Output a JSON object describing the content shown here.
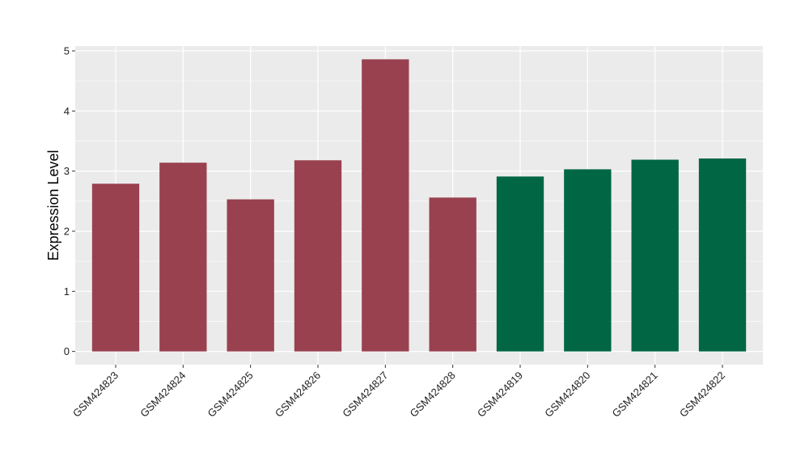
{
  "chart_data": {
    "type": "bar",
    "title": "",
    "xlabel": "",
    "ylabel": "Expression Level",
    "ylim": [
      -0.22,
      5.08
    ],
    "yticks": [
      0,
      1,
      2,
      3,
      4,
      5
    ],
    "grid": true,
    "legend": "none",
    "categories": [
      "GSM424823",
      "GSM424824",
      "GSM424825",
      "GSM424826",
      "GSM424827",
      "GSM424828",
      "GSM424819",
      "GSM424820",
      "GSM424821",
      "GSM424822"
    ],
    "values": [
      2.79,
      3.14,
      2.53,
      3.18,
      4.86,
      2.56,
      2.91,
      3.03,
      3.19,
      3.21
    ],
    "bar_colors": [
      "#99414f",
      "#99414f",
      "#99414f",
      "#99414f",
      "#99414f",
      "#99414f",
      "#006644",
      "#006644",
      "#006644",
      "#006644"
    ],
    "panel_background": "#ebebeb",
    "grid_color": "#ffffff"
  }
}
